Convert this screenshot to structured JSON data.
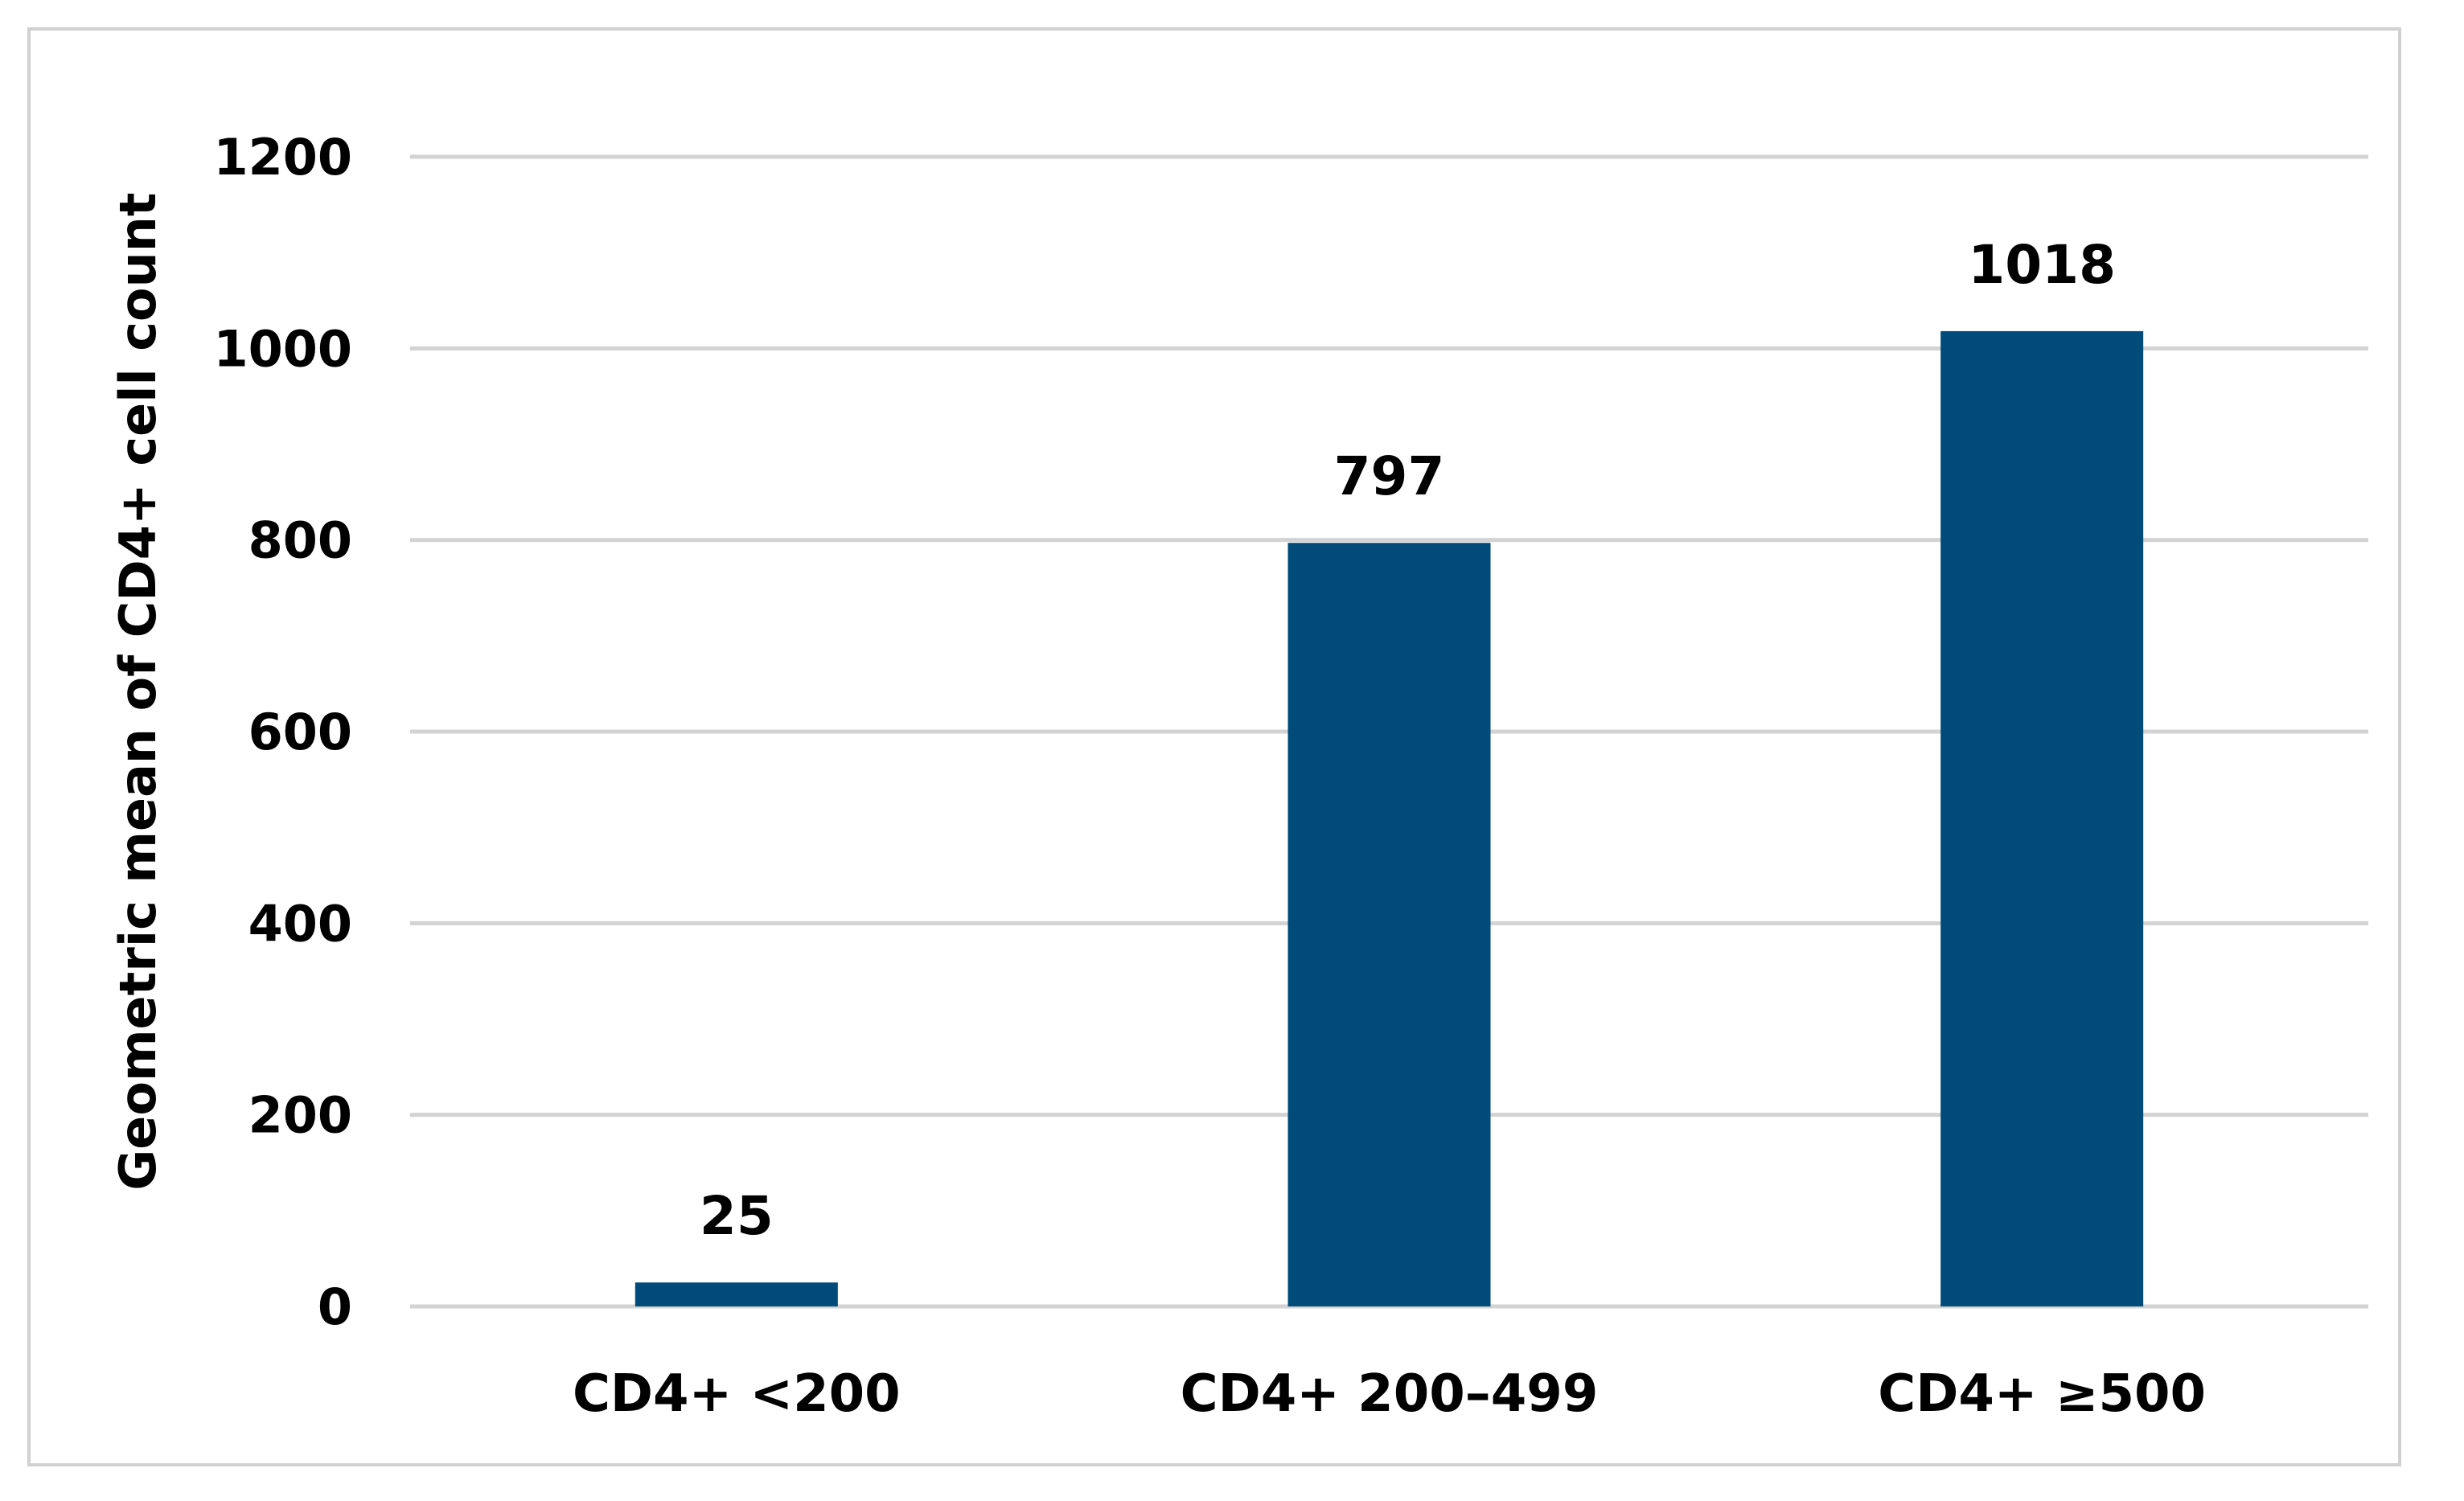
{
  "chart_data": {
    "type": "bar",
    "categories": [
      "CD4+ <200",
      "CD4+ 200–499",
      "CD4+ ≥500"
    ],
    "values": [
      25,
      797,
      1018
    ],
    "data_labels": [
      "25",
      "797",
      "1018"
    ],
    "title": "",
    "xlabel": "",
    "ylabel": "Geometric mean of CD4+ cell count",
    "ylim": [
      0,
      1200
    ],
    "yticks": [
      0,
      200,
      400,
      600,
      800,
      1000,
      1200
    ],
    "grid": true,
    "legend": "none",
    "bar_color": "#004B7A",
    "grid_color": "#D3D3D3"
  }
}
